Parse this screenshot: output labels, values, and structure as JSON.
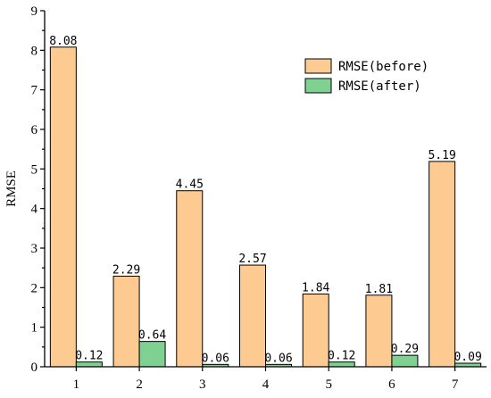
{
  "chart_data": {
    "type": "bar",
    "title": "",
    "xlabel": "",
    "ylabel": "RMSE",
    "categories": [
      "1",
      "2",
      "3",
      "4",
      "5",
      "6",
      "7"
    ],
    "series": [
      {
        "name": "RMSE(before)",
        "color": "#FDCB92",
        "values": [
          8.08,
          2.29,
          4.45,
          2.57,
          1.84,
          1.81,
          5.19
        ],
        "labels": [
          "8.08",
          "2.29",
          "4.45",
          "2.57",
          "1.84",
          "1.81",
          "5.19"
        ]
      },
      {
        "name": "RMSE(after)",
        "color": "#7FD191",
        "values": [
          0.12,
          0.64,
          0.06,
          0.06,
          0.12,
          0.29,
          0.09
        ],
        "labels": [
          "0.12",
          "0.64",
          "0.06",
          "0.06",
          "0.12",
          "0.29",
          "0.09"
        ]
      }
    ],
    "ylim": [
      0,
      9
    ],
    "yticks": [
      "0",
      "1",
      "2",
      "3",
      "4",
      "5",
      "6",
      "7",
      "8",
      "9"
    ],
    "grid": false,
    "legend_position": "top-right"
  }
}
